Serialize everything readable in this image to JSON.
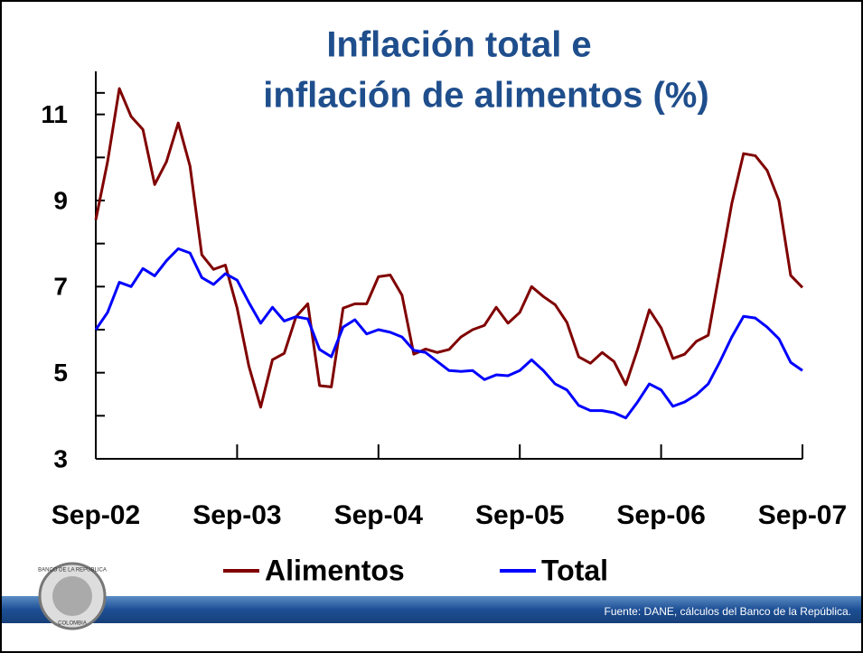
{
  "chart_data": {
    "type": "line",
    "title": [
      "Inflación total e",
      "inflación de alimentos (%)"
    ],
    "categories": [
      "Sep-02",
      null,
      null,
      null,
      null,
      null,
      null,
      null,
      null,
      null,
      null,
      null,
      "Sep-03",
      null,
      null,
      null,
      null,
      null,
      null,
      null,
      null,
      null,
      null,
      null,
      "Sep-04",
      null,
      null,
      null,
      null,
      null,
      null,
      null,
      null,
      null,
      null,
      null,
      "Sep-05",
      null,
      null,
      null,
      null,
      null,
      null,
      null,
      null,
      null,
      null,
      null,
      "Sep-06",
      null,
      null,
      null,
      null,
      null,
      null,
      null,
      null,
      null,
      null,
      null,
      "Sep-07"
    ],
    "series": [
      {
        "name": "Alimentos",
        "color": "#800000",
        "values": [
          8.55,
          9.9,
          11.6,
          10.95,
          10.65,
          9.37,
          9.9,
          10.8,
          9.8,
          7.74,
          7.4,
          7.5,
          6.5,
          5.15,
          4.2,
          5.3,
          5.45,
          6.3,
          6.6,
          4.7,
          4.67,
          6.5,
          6.6,
          6.6,
          7.23,
          7.27,
          6.8,
          5.43,
          5.55,
          5.47,
          5.54,
          5.83,
          6.0,
          6.1,
          6.52,
          6.15,
          6.4,
          7.0,
          6.77,
          6.58,
          6.17,
          5.37,
          5.22,
          5.47,
          5.26,
          4.72,
          5.54,
          6.46,
          6.04,
          5.33,
          5.43,
          5.73,
          5.87,
          7.4,
          8.93,
          10.09,
          10.04,
          9.7,
          9.0,
          7.26,
          6.98
        ]
      },
      {
        "name": "Total",
        "color": "#0000ff",
        "values": [
          6.0,
          6.4,
          7.1,
          7.0,
          7.42,
          7.25,
          7.6,
          7.88,
          7.78,
          7.21,
          7.05,
          7.3,
          7.15,
          6.63,
          6.15,
          6.52,
          6.2,
          6.3,
          6.25,
          5.54,
          5.37,
          6.06,
          6.23,
          5.9,
          6.0,
          5.94,
          5.83,
          5.52,
          5.47,
          5.26,
          5.05,
          5.03,
          5.05,
          4.84,
          4.95,
          4.93,
          5.05,
          5.3,
          5.05,
          4.74,
          4.6,
          4.24,
          4.12,
          4.12,
          4.07,
          3.95,
          4.32,
          4.74,
          4.6,
          4.22,
          4.32,
          4.49,
          4.74,
          5.26,
          5.83,
          6.31,
          6.27,
          6.06,
          5.79,
          5.24,
          5.05
        ]
      }
    ],
    "ylim": [
      3,
      12
    ],
    "yticks": [
      3,
      5,
      7,
      9,
      11
    ],
    "legend": "bottom",
    "source": "Fuente: DANE, cálculos del Banco de la República.",
    "logo": [
      "BANCO DE LA REPUBLICA",
      "COLOMBIA"
    ]
  }
}
